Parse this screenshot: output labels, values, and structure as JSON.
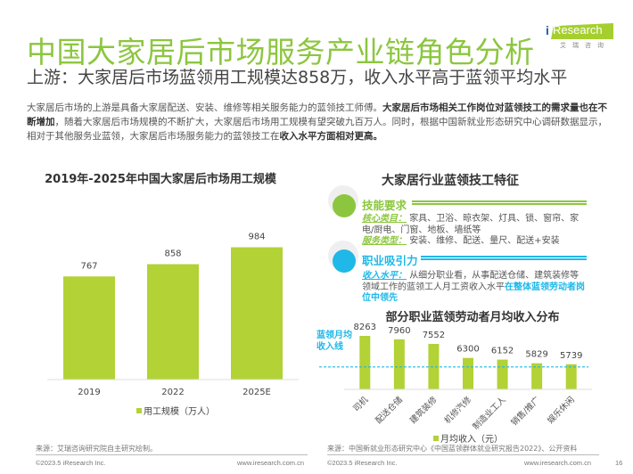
{
  "header": {
    "title": "中国大家居后市场服务产业链角色分析",
    "subtitle": "上游：大家居后市场蓝领用工规模达858万，收入水平高于蓝领平均水平",
    "logo_i": "i",
    "logo_text": "Research",
    "logo_cn": "艾瑞咨询"
  },
  "intro": {
    "p1": "大家居后市场的上游是具备大家居配送、安装、维修等相关服务能力的蓝领技工师傅。",
    "p1_bold": "大家居后市场相关工作岗位对蓝领技工的需求量也在不断增加",
    "p2": "，随着大家居后市场规模的不断扩大，大家居后市场用工规模有望突破九百万人。同时，根据中国新就业形态研究中心调研数据显示，相对于其他服务业蓝领，大家居后市场服务能力的蓝领技工在",
    "p2_bold": "收入水平方面相对更高。"
  },
  "features": {
    "title": "大家居行业蓝领技工特征",
    "skills": {
      "heading": "技能要求",
      "core_label": "核心类目：",
      "core_text": "家具、卫浴、晾衣架、灯具、锁、窗帘、家电/厨电、门窗、地板、墙纸等",
      "service_label": "服务类型：",
      "service_text": "安装、维修、配送、量尺、配送+安装"
    },
    "attraction": {
      "heading": "职业吸引力",
      "income_label": "收入水平：",
      "income_text": "从细分职业看，从事配送仓储、建筑装修等领域工作的蓝领工人月工资收入水平",
      "income_bold": "在整体蓝领劳动者岗位中领先"
    }
  },
  "colors": {
    "brand_green": "#8cc63f",
    "bar_green": "#b2d235",
    "accent_blue": "#1fb8e8"
  },
  "chart_data": [
    {
      "type": "bar",
      "title": "2019年-2025年中国大家居后市场用工规模",
      "categories": [
        "2019",
        "2022",
        "2025E"
      ],
      "series": [
        {
          "name": "用工规模（万人）",
          "values": [
            767,
            858,
            984
          ]
        }
      ],
      "xlabel": "",
      "ylabel": "",
      "ylim": [
        0,
        1100
      ],
      "grid": false,
      "legend": "bottom"
    },
    {
      "type": "bar",
      "title": "部分职业蓝领劳动者月均收入分布",
      "categories": [
        "司机",
        "配送仓储",
        "建筑装修",
        "机修汽修",
        "制造业工人",
        "销售/推广",
        "娱乐休闲"
      ],
      "series": [
        {
          "name": "月均收入（元）",
          "values": [
            8263,
            7960,
            7552,
            6300,
            6152,
            5829,
            5739
          ]
        }
      ],
      "reference_line": {
        "label": "蓝领月均收入线",
        "value": 5500
      },
      "xlabel": "",
      "ylabel": "",
      "ylim": [
        0,
        8263
      ],
      "grid": false,
      "legend": "bottom"
    }
  ],
  "footer": {
    "left_source": "来源：艾瑞咨询研究院自主研究绘制。",
    "right_source": "来源：中国新就业形态研究中心《中国蓝领群体就业研究报告2022》、公开资料",
    "copyright": "©2023.5 iResearch Inc.",
    "website": "www.iresearch.com.cn",
    "page": "16"
  }
}
